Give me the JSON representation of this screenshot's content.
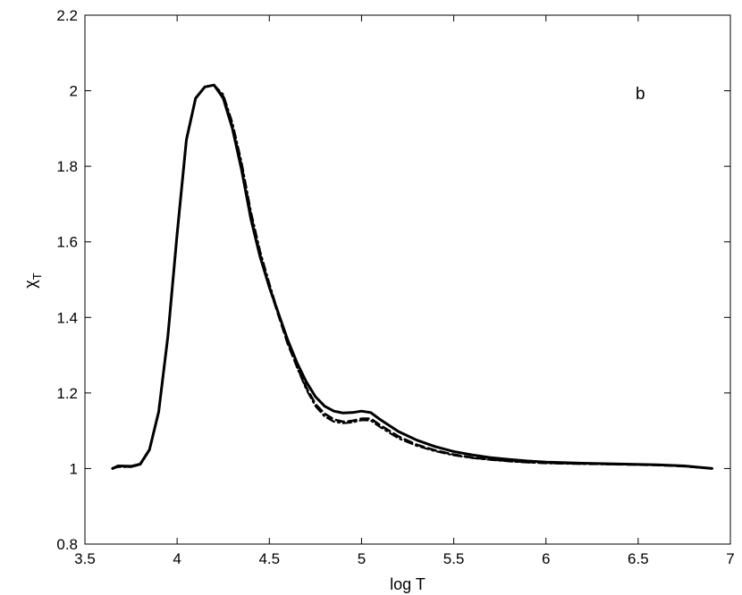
{
  "chart_data": {
    "type": "line",
    "xlabel": "log T",
    "ylabel": "χ",
    "ylabel_subscript": "T",
    "annotation": "b",
    "xlim": [
      3.5,
      7
    ],
    "ylim": [
      0.8,
      2.2
    ],
    "xticks": [
      3.5,
      4,
      4.5,
      5,
      5.5,
      6,
      6.5,
      7
    ],
    "xtick_labels": [
      "3.5",
      "4",
      "4.5",
      "5",
      "5.5",
      "6",
      "6.5",
      "7"
    ],
    "yticks": [
      0.8,
      1,
      1.2,
      1.4,
      1.6,
      1.8,
      2,
      2.2
    ],
    "ytick_labels": [
      "0.8",
      "1",
      "1.2",
      "1.4",
      "1.6",
      "1.8",
      "2",
      "2.2"
    ],
    "grid": false,
    "series": [
      {
        "style": "solid",
        "color": "#000000",
        "x": [
          3.65,
          3.68,
          3.75,
          3.8,
          3.85,
          3.9,
          3.95,
          4.0,
          4.05,
          4.1,
          4.15,
          4.2,
          4.25,
          4.3,
          4.35,
          4.4,
          4.45,
          4.5,
          4.55,
          4.6,
          4.65,
          4.7,
          4.75,
          4.8,
          4.85,
          4.9,
          4.95,
          5.0,
          5.05,
          5.1,
          5.2,
          5.3,
          5.4,
          5.5,
          5.6,
          5.7,
          5.8,
          5.9,
          6.0,
          6.2,
          6.4,
          6.6,
          6.75,
          6.9
        ],
        "y": [
          1.0,
          1.007,
          1.006,
          1.012,
          1.05,
          1.15,
          1.35,
          1.62,
          1.87,
          1.98,
          2.01,
          2.015,
          1.98,
          1.9,
          1.79,
          1.66,
          1.56,
          1.48,
          1.41,
          1.34,
          1.28,
          1.23,
          1.19,
          1.165,
          1.152,
          1.147,
          1.148,
          1.152,
          1.148,
          1.13,
          1.098,
          1.075,
          1.058,
          1.045,
          1.036,
          1.029,
          1.024,
          1.02,
          1.017,
          1.014,
          1.012,
          1.01,
          1.007,
          1.0
        ]
      },
      {
        "style": "dashed",
        "color": "#000000",
        "x": [
          3.65,
          3.68,
          3.75,
          3.8,
          3.85,
          3.9,
          3.95,
          4.0,
          4.05,
          4.1,
          4.15,
          4.2,
          4.25,
          4.3,
          4.35,
          4.4,
          4.45,
          4.5,
          4.55,
          4.6,
          4.65,
          4.7,
          4.75,
          4.8,
          4.85,
          4.9,
          4.95,
          5.0,
          5.05,
          5.1,
          5.2,
          5.3,
          5.4,
          5.5,
          5.6,
          5.7,
          5.8,
          5.9,
          6.0,
          6.2,
          6.4,
          6.6,
          6.75,
          6.9
        ],
        "y": [
          1.0,
          1.005,
          1.005,
          1.011,
          1.049,
          1.15,
          1.35,
          1.62,
          1.87,
          1.98,
          2.01,
          2.015,
          1.985,
          1.905,
          1.8,
          1.67,
          1.565,
          1.48,
          1.405,
          1.33,
          1.27,
          1.215,
          1.17,
          1.145,
          1.13,
          1.124,
          1.126,
          1.132,
          1.132,
          1.115,
          1.085,
          1.063,
          1.048,
          1.037,
          1.029,
          1.024,
          1.02,
          1.017,
          1.015,
          1.013,
          1.011,
          1.009,
          1.006,
          1.0
        ]
      },
      {
        "style": "dashdot",
        "color": "#000000",
        "x": [
          3.65,
          3.68,
          3.75,
          3.8,
          3.85,
          3.9,
          3.95,
          4.0,
          4.05,
          4.1,
          4.15,
          4.2,
          4.25,
          4.3,
          4.35,
          4.4,
          4.45,
          4.5,
          4.55,
          4.6,
          4.65,
          4.7,
          4.75,
          4.8,
          4.85,
          4.9,
          4.95,
          5.0,
          5.05,
          5.1,
          5.2,
          5.3,
          5.4,
          5.5,
          5.6,
          5.7,
          5.8,
          5.9,
          6.0,
          6.2,
          6.4,
          6.6,
          6.75,
          6.9
        ],
        "y": [
          1.0,
          1.004,
          1.004,
          1.01,
          1.048,
          1.15,
          1.35,
          1.62,
          1.87,
          1.98,
          2.01,
          2.015,
          1.99,
          1.915,
          1.81,
          1.68,
          1.575,
          1.49,
          1.41,
          1.335,
          1.268,
          1.21,
          1.165,
          1.138,
          1.124,
          1.12,
          1.122,
          1.128,
          1.127,
          1.11,
          1.08,
          1.06,
          1.046,
          1.035,
          1.028,
          1.023,
          1.019,
          1.016,
          1.014,
          1.012,
          1.011,
          1.009,
          1.006,
          1.0
        ]
      }
    ]
  }
}
